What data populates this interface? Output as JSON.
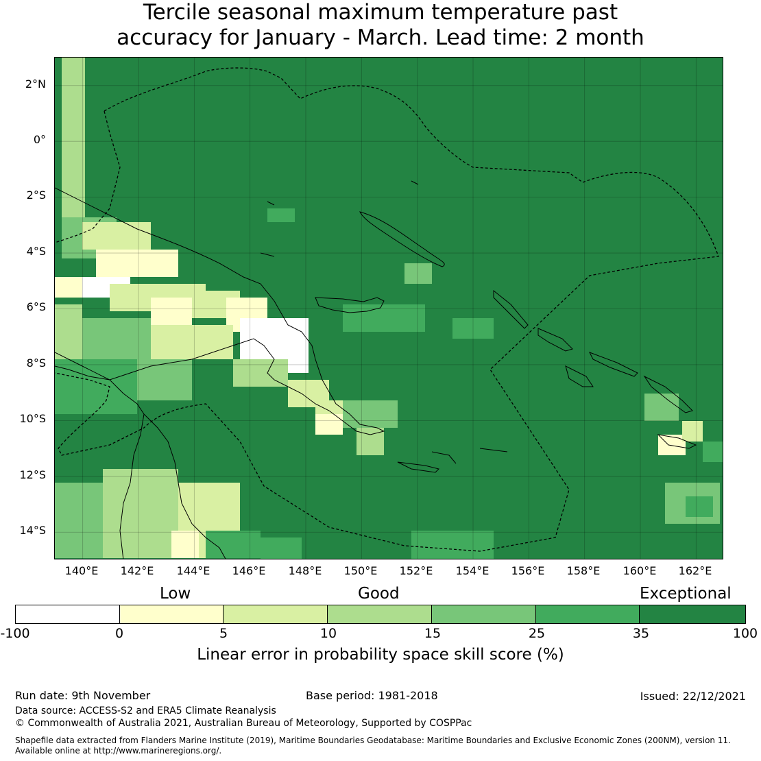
{
  "title": {
    "line1": "Tercile seasonal maximum temperature past",
    "line2": "accuracy for January - March. Lead time: 2 month"
  },
  "map": {
    "lat_labels": [
      "2°N",
      "0°",
      "2°S",
      "4°S",
      "6°S",
      "8°S",
      "10°S",
      "12°S",
      "14°S"
    ],
    "lon_labels": [
      "140°E",
      "142°E",
      "144°E",
      "146°E",
      "148°E",
      "150°E",
      "152°E",
      "154°E",
      "156°E",
      "158°E",
      "160°E",
      "162°E"
    ],
    "lon_range": [
      139,
      163
    ],
    "lat_range": [
      -15,
      3
    ],
    "grid_resolution_deg": 0.833,
    "default_class": 6
  },
  "legend": {
    "categories": [
      "Low",
      "Good",
      "Exceptional"
    ],
    "ticks": [
      "-100",
      "0",
      "5",
      "10",
      "15",
      "25",
      "35",
      "100"
    ],
    "colors": [
      "#ffffff",
      "#ffffcc",
      "#d9f0a3",
      "#addd8e",
      "#78c679",
      "#41ab5d",
      "#238443"
    ],
    "axis_label": "Linear error in probability space skill score (%)"
  },
  "footer": {
    "run_date": "Run date: 9th November",
    "base_period": "Base period: 1981-2018",
    "issued": "Issued: 22/12/2021",
    "data_source": "Data source: ACCESS-S2 and ERA5 Climate Reanalysis",
    "copyright": "© Commonwealth of Australia 2021, Australian Bureau of Meteorology, Supported by COSPPac",
    "shapefile_line1": "Shapefile data extracted from Flanders Marine Institute (2019), Maritime Boundaries Geodatabase: Maritime Boundaries and Exclusive Economic Zones (200NM), version 11.",
    "shapefile_line2": "Available online at http://www.marineregions.org/."
  }
}
